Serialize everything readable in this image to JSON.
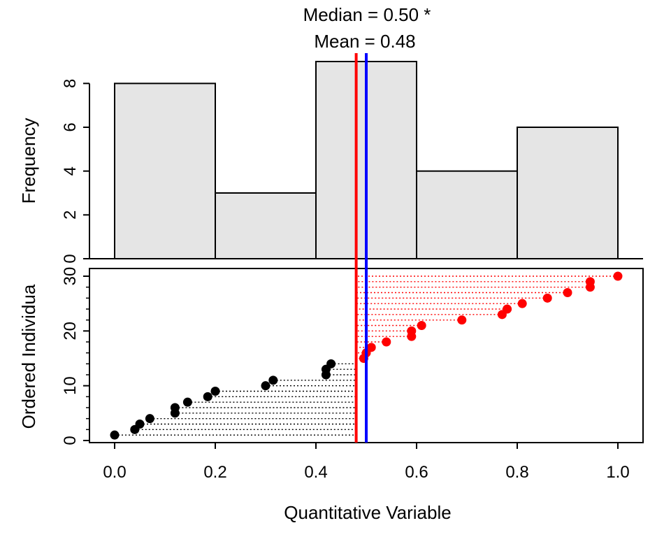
{
  "annotations": {
    "median_label": "Median = 0.50  *",
    "mean_label": "Mean = 0.48"
  },
  "chart_data": [
    {
      "type": "histogram",
      "ylabel": "Frequency",
      "xlim": [
        -0.05,
        1.05
      ],
      "ylim": [
        0,
        9
      ],
      "bins": [
        {
          "from": 0.0,
          "to": 0.2,
          "count": 8
        },
        {
          "from": 0.2,
          "to": 0.4,
          "count": 3
        },
        {
          "from": 0.4,
          "to": 0.6,
          "count": 9
        },
        {
          "from": 0.6,
          "to": 0.8,
          "count": 4
        },
        {
          "from": 0.8,
          "to": 1.0,
          "count": 6
        }
      ],
      "y_ticks": [
        "0",
        "2",
        "4",
        "6",
        "8"
      ],
      "bar_fill": "#e5e5e5",
      "mean": 0.48,
      "median": 0.5,
      "mean_color": "#ff0000",
      "median_color": "#0000ff"
    },
    {
      "type": "scatter",
      "xlabel": "Quantitative Variable",
      "ylabel": "Ordered Individua",
      "xlim": [
        -0.05,
        1.05
      ],
      "ylim": [
        0,
        30
      ],
      "x_ticks": [
        "0.0",
        "0.2",
        "0.4",
        "0.6",
        "0.8",
        "1.0"
      ],
      "y_ticks": [
        "0",
        "10",
        "20",
        "30"
      ],
      "reference_x": 0.48,
      "below_color": "#000000",
      "above_color": "#ff0000",
      "points": [
        {
          "x": 0.0,
          "y": 1
        },
        {
          "x": 0.04,
          "y": 2
        },
        {
          "x": 0.05,
          "y": 3
        },
        {
          "x": 0.07,
          "y": 4
        },
        {
          "x": 0.12,
          "y": 5
        },
        {
          "x": 0.12,
          "y": 6
        },
        {
          "x": 0.145,
          "y": 7
        },
        {
          "x": 0.185,
          "y": 8
        },
        {
          "x": 0.2,
          "y": 9
        },
        {
          "x": 0.3,
          "y": 10
        },
        {
          "x": 0.315,
          "y": 11
        },
        {
          "x": 0.42,
          "y": 12
        },
        {
          "x": 0.42,
          "y": 13
        },
        {
          "x": 0.43,
          "y": 14
        },
        {
          "x": 0.495,
          "y": 15
        },
        {
          "x": 0.5,
          "y": 16
        },
        {
          "x": 0.51,
          "y": 17
        },
        {
          "x": 0.54,
          "y": 18
        },
        {
          "x": 0.59,
          "y": 19
        },
        {
          "x": 0.59,
          "y": 20
        },
        {
          "x": 0.61,
          "y": 21
        },
        {
          "x": 0.69,
          "y": 22
        },
        {
          "x": 0.77,
          "y": 23
        },
        {
          "x": 0.78,
          "y": 24
        },
        {
          "x": 0.81,
          "y": 25
        },
        {
          "x": 0.86,
          "y": 26
        },
        {
          "x": 0.9,
          "y": 27
        },
        {
          "x": 0.945,
          "y": 28
        },
        {
          "x": 0.945,
          "y": 29
        },
        {
          "x": 1.0,
          "y": 30
        }
      ]
    }
  ]
}
